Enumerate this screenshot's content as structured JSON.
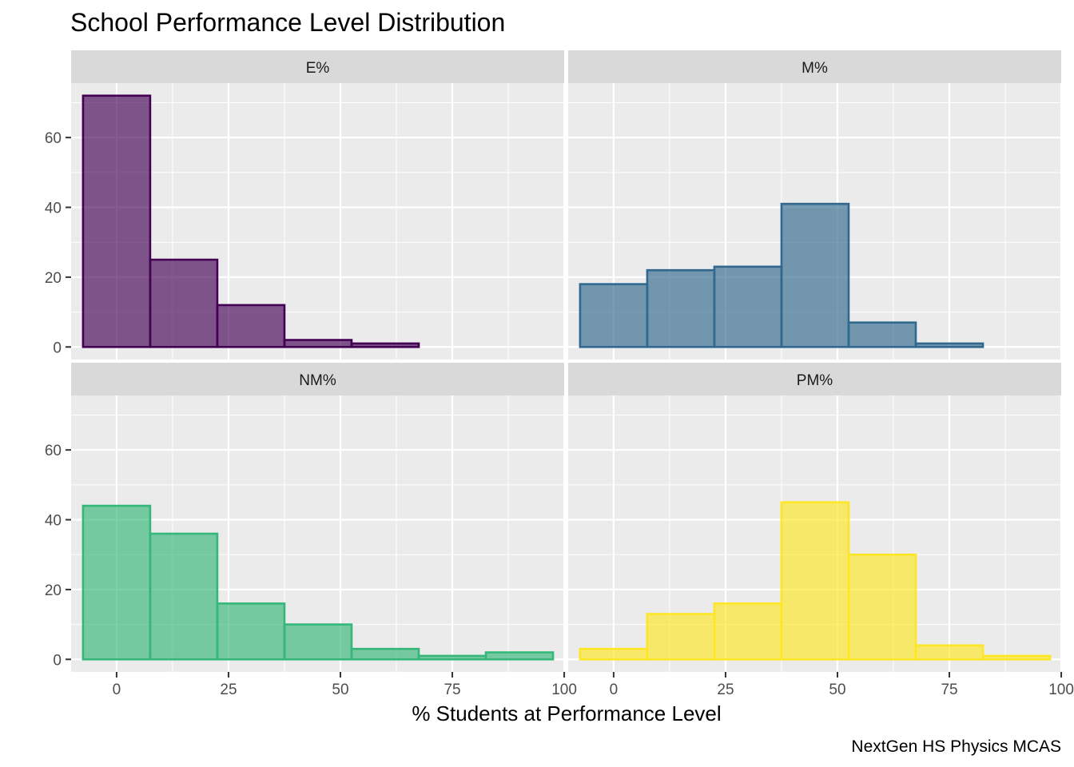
{
  "chart_data": {
    "type": "bar",
    "subtype": "faceted-histogram",
    "title": "School Performance Level Distribution",
    "xlabel": "% Students at Performance Level",
    "ylabel": "",
    "caption": "NextGen HS Physics MCAS",
    "bin_width": 15,
    "bin_centers": [
      0,
      15,
      30,
      45,
      60,
      75,
      90
    ],
    "xlim": [
      -10,
      100
    ],
    "ylim": [
      0,
      75
    ],
    "x_ticks": [
      "0",
      "25",
      "50",
      "75",
      "100"
    ],
    "y_ticks": [
      "0",
      "20",
      "40",
      "60"
    ],
    "grid": true,
    "legend": "none",
    "series": [
      {
        "name": "E%",
        "color": "#440154",
        "values": [
          72,
          25,
          12,
          2,
          1,
          0,
          0
        ]
      },
      {
        "name": "M%",
        "color": "#31688E",
        "values": [
          18,
          22,
          23,
          41,
          7,
          1,
          0
        ]
      },
      {
        "name": "NM%",
        "color": "#35B779",
        "values": [
          44,
          36,
          16,
          10,
          3,
          1,
          2
        ]
      },
      {
        "name": "PM%",
        "color": "#FDE725",
        "values": [
          3,
          13,
          16,
          45,
          30,
          4,
          1
        ]
      }
    ]
  }
}
